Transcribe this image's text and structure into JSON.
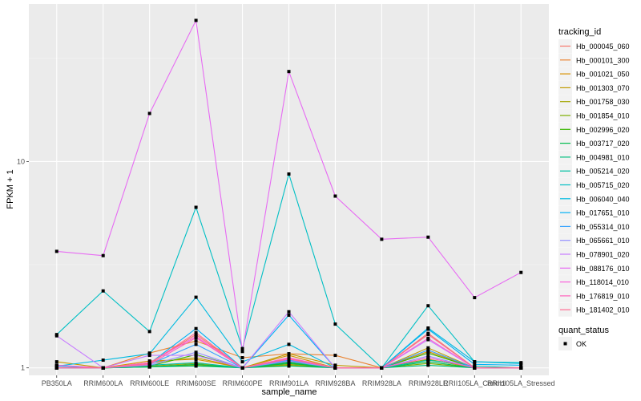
{
  "chart_data": {
    "type": "line",
    "title": "",
    "xlabel": "sample_name",
    "ylabel": "FPKM + 1",
    "yscale": "log10",
    "ylim": [
      0.92,
      58
    ],
    "yticks": [
      1,
      10
    ],
    "ytick_labels": [
      "1",
      "10"
    ],
    "grid": true,
    "legend_placement": "right",
    "categories": [
      "PB350LA",
      "RRIM600LA",
      "RRIM600LE",
      "RRIM600SE",
      "RRIM600PE",
      "RRIM901LA",
      "RRIM928BA",
      "RRIM928LA",
      "RRIM928LE",
      "RRII105LA_Control",
      "RRII105LA_Stressed"
    ],
    "legend": {
      "color_title": "tracking_id",
      "shape_title": "quant_status",
      "shape_entries": [
        {
          "label": "OK",
          "shape": "square",
          "color": "#000000"
        }
      ]
    },
    "series": [
      {
        "name": "Hb_000045_060",
        "color": "#F8766D",
        "values": [
          1.02,
          1.0,
          1.05,
          1.45,
          1.0,
          1.1,
          1.0,
          1.0,
          1.47,
          1.0,
          1.0
        ]
      },
      {
        "name": "Hb_000101_300",
        "color": "#EA8331",
        "values": [
          1.03,
          1.0,
          1.18,
          1.35,
          1.12,
          1.17,
          1.15,
          1.0,
          1.1,
          1.0,
          1.0
        ]
      },
      {
        "name": "Hb_001021_050",
        "color": "#D89000",
        "values": [
          1.0,
          1.0,
          1.08,
          1.1,
          1.0,
          1.15,
          1.0,
          1.0,
          1.2,
          1.0,
          1.0
        ]
      },
      {
        "name": "Hb_001303_070",
        "color": "#C09B00",
        "values": [
          1.07,
          1.0,
          1.06,
          1.12,
          1.0,
          1.17,
          1.03,
          1.0,
          1.25,
          1.0,
          1.0
        ]
      },
      {
        "name": "Hb_001758_030",
        "color": "#A3A500",
        "values": [
          1.0,
          1.0,
          1.02,
          1.05,
          1.0,
          1.04,
          1.0,
          1.0,
          1.1,
          1.0,
          1.0
        ]
      },
      {
        "name": "Hb_001854_010",
        "color": "#7CAE00",
        "values": [
          1.0,
          1.0,
          1.01,
          1.03,
          1.0,
          1.03,
          1.0,
          1.0,
          1.05,
          1.0,
          1.0
        ]
      },
      {
        "name": "Hb_002996_020",
        "color": "#39B600",
        "values": [
          1.0,
          1.0,
          1.02,
          1.16,
          1.0,
          1.06,
          1.0,
          1.0,
          1.18,
          1.0,
          1.0
        ]
      },
      {
        "name": "Hb_003717_020",
        "color": "#00BB4E",
        "values": [
          1.0,
          1.0,
          1.01,
          1.04,
          1.0,
          1.05,
          1.0,
          1.0,
          1.07,
          1.0,
          1.0
        ]
      },
      {
        "name": "Hb_004981_010",
        "color": "#00BF7D",
        "values": [
          1.0,
          1.0,
          1.01,
          1.02,
          1.0,
          1.02,
          1.0,
          1.0,
          1.03,
          1.0,
          1.0
        ]
      },
      {
        "name": "Hb_005214_020",
        "color": "#00C1A3",
        "values": [
          1.0,
          1.0,
          1.03,
          1.06,
          1.0,
          1.07,
          1.0,
          1.0,
          1.09,
          1.02,
          1.0
        ]
      },
      {
        "name": "Hb_005715_020",
        "color": "#00BFC4",
        "values": [
          1.45,
          2.36,
          1.5,
          6.0,
          1.24,
          8.7,
          1.63,
          1.0,
          2.0,
          1.07,
          1.06
        ]
      },
      {
        "name": "Hb_006040_040",
        "color": "#00BAE0",
        "values": [
          1.02,
          1.09,
          1.17,
          2.2,
          1.07,
          1.3,
          1.0,
          1.0,
          1.56,
          1.07,
          1.05
        ]
      },
      {
        "name": "Hb_017651_010",
        "color": "#00B0F6",
        "values": [
          1.02,
          1.0,
          1.05,
          1.55,
          1.0,
          1.8,
          1.0,
          1.0,
          1.54,
          1.04,
          1.03
        ]
      },
      {
        "name": "Hb_055314_010",
        "color": "#35A2FF",
        "values": [
          1.0,
          1.0,
          1.04,
          1.3,
          1.0,
          1.09,
          1.0,
          1.0,
          1.22,
          1.0,
          1.0
        ]
      },
      {
        "name": "Hb_065661_010",
        "color": "#9590FF",
        "values": [
          1.0,
          1.0,
          1.03,
          1.19,
          1.0,
          1.08,
          1.0,
          1.0,
          1.14,
          1.0,
          1.0
        ]
      },
      {
        "name": "Hb_078901_020",
        "color": "#C77CFF",
        "values": [
          1.43,
          1.0,
          1.15,
          1.15,
          1.0,
          1.87,
          1.0,
          1.0,
          1.37,
          1.0,
          1.0
        ]
      },
      {
        "name": "Hb_088176_010",
        "color": "#E76BF3",
        "values": [
          3.67,
          3.5,
          17.1,
          48.3,
          1.2,
          27.3,
          6.8,
          4.2,
          4.3,
          2.19,
          2.9
        ]
      },
      {
        "name": "Hb_118014_010",
        "color": "#FA62DB",
        "values": [
          1.03,
          1.0,
          1.06,
          1.42,
          1.0,
          1.12,
          1.0,
          1.0,
          1.39,
          1.0,
          1.0
        ]
      },
      {
        "name": "Hb_176819_010",
        "color": "#FF62BC",
        "values": [
          1.0,
          1.0,
          1.04,
          1.4,
          1.0,
          1.1,
          1.0,
          1.0,
          1.12,
          1.0,
          1.0
        ]
      },
      {
        "name": "Hb_181402_010",
        "color": "#FF6C91",
        "values": [
          1.0,
          1.0,
          1.05,
          1.48,
          1.0,
          1.11,
          1.0,
          1.0,
          1.45,
          1.0,
          1.0
        ]
      }
    ]
  }
}
